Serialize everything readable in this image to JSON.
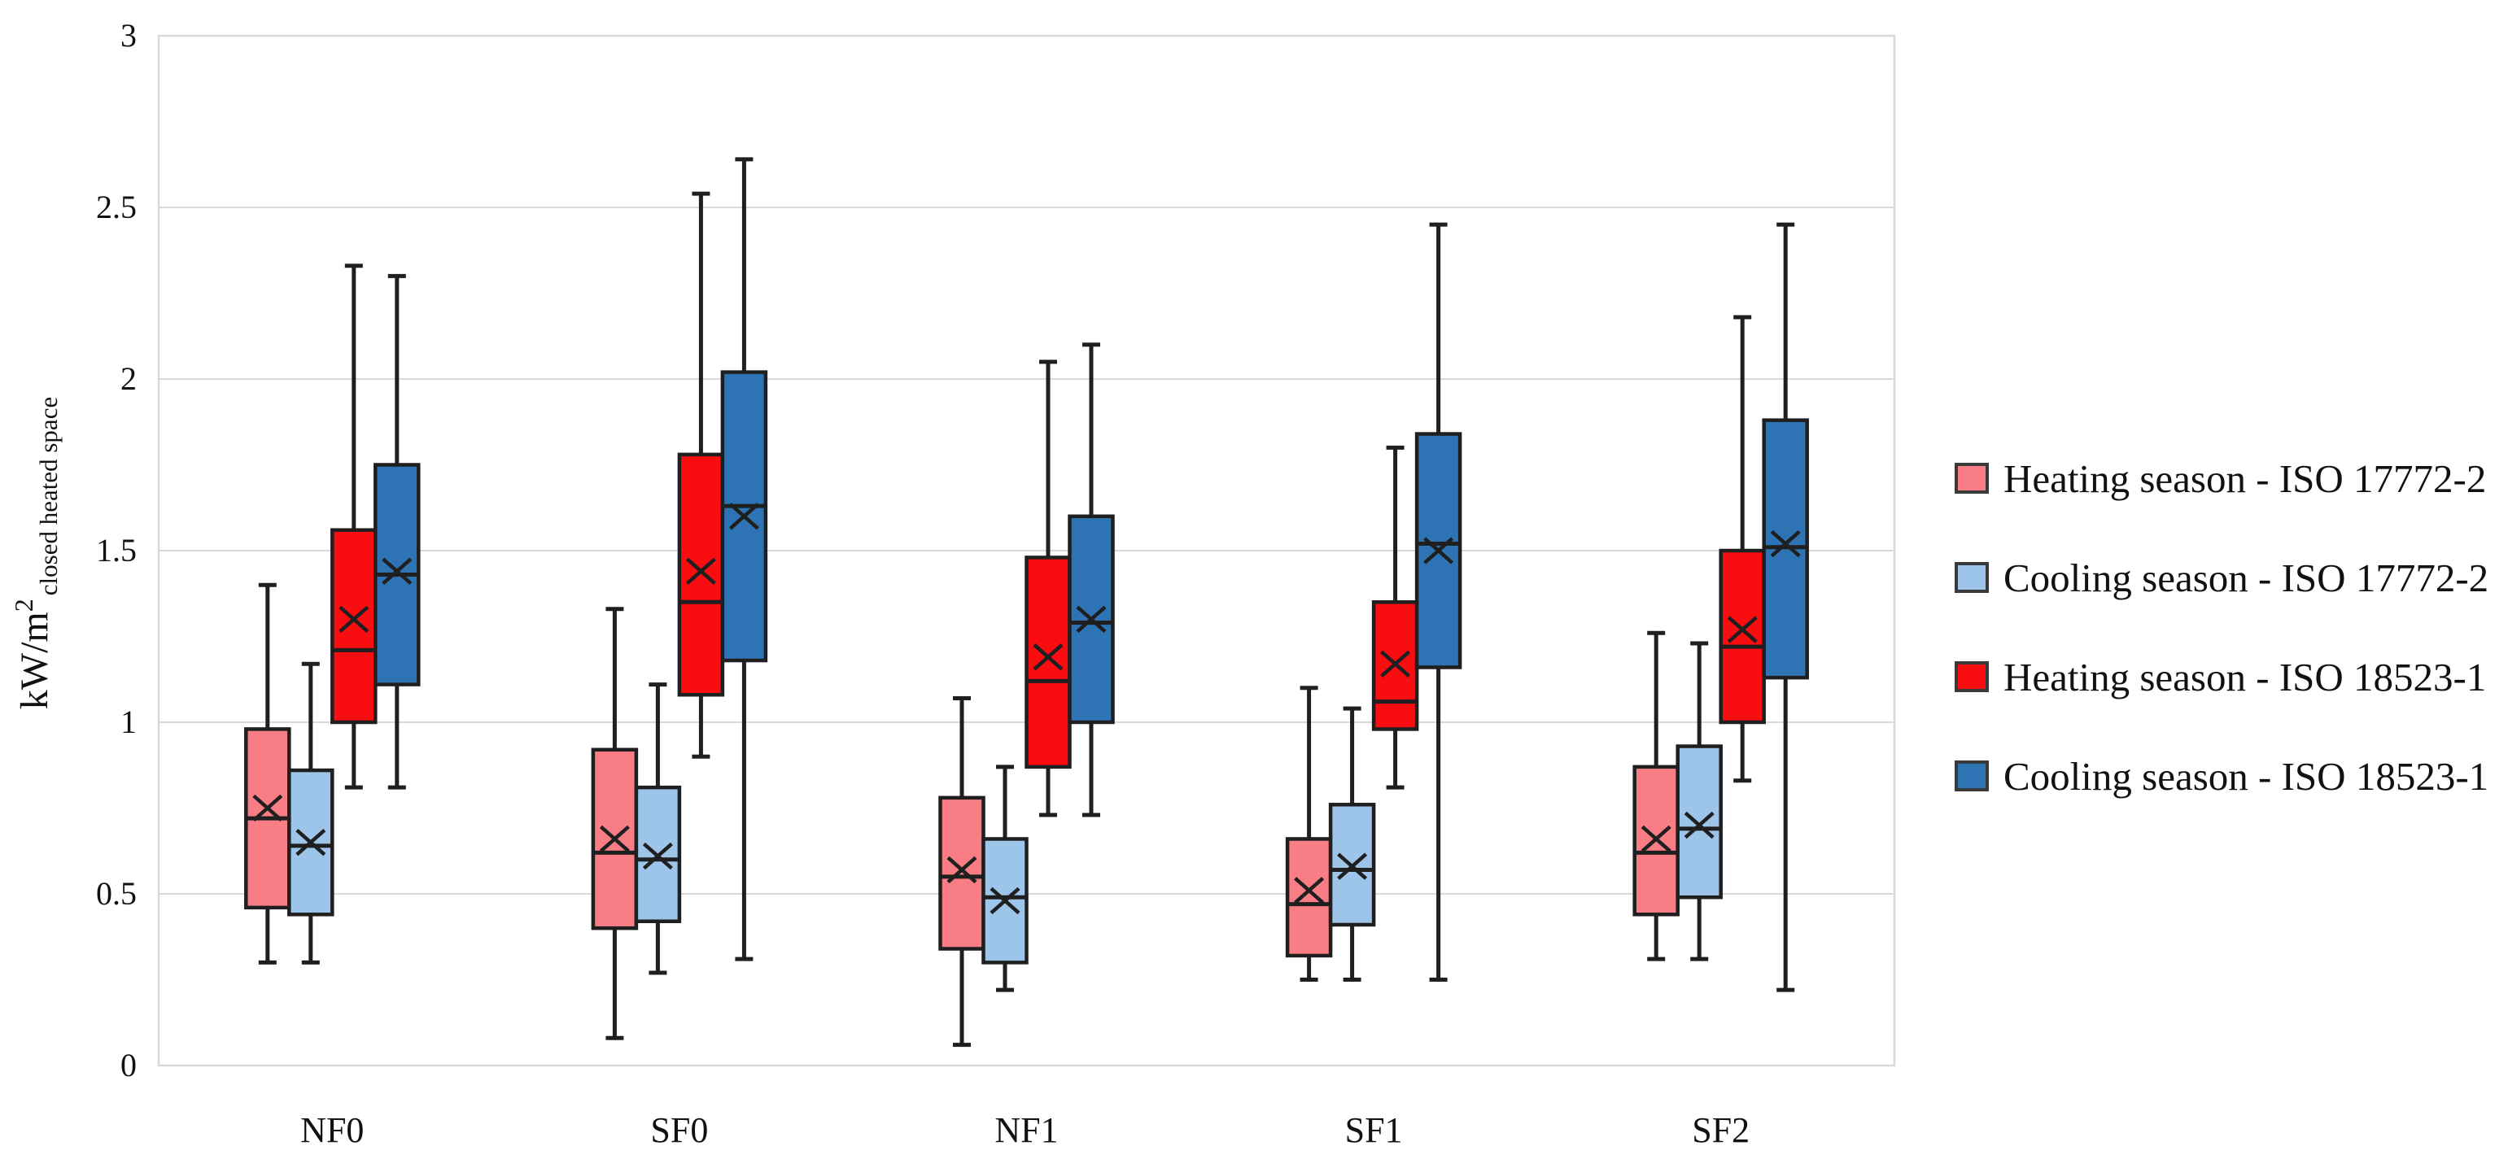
{
  "figure": {
    "background": "#FFFFFF",
    "axis_color": "#D9D9D9",
    "ink_color": "#1F1F1F",
    "legend_swatch_border": "#3A3A3A"
  },
  "chart_data": {
    "type": "boxplot",
    "title": "",
    "ylabel": {
      "main": "kW/m",
      "sup": "2",
      "sub": "closed heated space"
    },
    "categories": [
      "NF0",
      "SF0",
      "NF1",
      "SF1",
      "SF2"
    ],
    "y_axis": {
      "min": 0,
      "max": 3,
      "step": 0.5,
      "ticks": [
        "0",
        "0.5",
        "1",
        "1.5",
        "2",
        "2.5",
        "3"
      ]
    },
    "grid": true,
    "legend_position": "right",
    "series": [
      {
        "name": "Heating season - ISO 17772-2",
        "color": "#F87D85",
        "boxes": [
          {
            "min": 0.3,
            "q1": 0.46,
            "median": 0.72,
            "mean": 0.75,
            "q3": 0.98,
            "max": 1.4
          },
          {
            "min": 0.08,
            "q1": 0.4,
            "median": 0.62,
            "mean": 0.66,
            "q3": 0.92,
            "max": 1.33
          },
          {
            "min": 0.06,
            "q1": 0.34,
            "median": 0.55,
            "mean": 0.57,
            "q3": 0.78,
            "max": 1.07
          },
          {
            "min": 0.25,
            "q1": 0.32,
            "median": 0.47,
            "mean": 0.51,
            "q3": 0.66,
            "max": 1.1
          },
          {
            "min": 0.31,
            "q1": 0.44,
            "median": 0.62,
            "mean": 0.66,
            "q3": 0.87,
            "max": 1.26
          }
        ]
      },
      {
        "name": "Cooling season - ISO 17772-2",
        "color": "#9DC5EA",
        "boxes": [
          {
            "min": 0.3,
            "q1": 0.44,
            "median": 0.64,
            "mean": 0.65,
            "q3": 0.86,
            "max": 1.17
          },
          {
            "min": 0.27,
            "q1": 0.42,
            "median": 0.6,
            "mean": 0.61,
            "q3": 0.81,
            "max": 1.11
          },
          {
            "min": 0.22,
            "q1": 0.3,
            "median": 0.49,
            "mean": 0.48,
            "q3": 0.66,
            "max": 0.87
          },
          {
            "min": 0.25,
            "q1": 0.41,
            "median": 0.57,
            "mean": 0.58,
            "q3": 0.76,
            "max": 1.04
          },
          {
            "min": 0.31,
            "q1": 0.49,
            "median": 0.69,
            "mean": 0.7,
            "q3": 0.93,
            "max": 1.23
          }
        ]
      },
      {
        "name": "Heating season - ISO 18523-1",
        "color": "#FA0D10",
        "boxes": [
          {
            "min": 0.81,
            "q1": 1.0,
            "median": 1.21,
            "mean": 1.3,
            "q3": 1.56,
            "max": 2.33
          },
          {
            "min": 0.9,
            "q1": 1.08,
            "median": 1.35,
            "mean": 1.44,
            "q3": 1.78,
            "max": 2.54
          },
          {
            "min": 0.73,
            "q1": 0.87,
            "median": 1.12,
            "mean": 1.19,
            "q3": 1.48,
            "max": 2.05
          },
          {
            "min": 0.81,
            "q1": 0.98,
            "median": 1.06,
            "mean": 1.17,
            "q3": 1.35,
            "max": 1.8
          },
          {
            "min": 0.83,
            "q1": 1.0,
            "median": 1.22,
            "mean": 1.27,
            "q3": 1.5,
            "max": 2.18
          }
        ]
      },
      {
        "name": "Cooling season - ISO 18523-1",
        "color": "#2E74B5",
        "boxes": [
          {
            "min": 0.81,
            "q1": 1.11,
            "median": 1.43,
            "mean": 1.44,
            "q3": 1.75,
            "max": 2.3
          },
          {
            "min": 0.31,
            "q1": 1.18,
            "median": 1.63,
            "mean": 1.6,
            "q3": 2.02,
            "max": 2.64
          },
          {
            "min": 0.73,
            "q1": 1.0,
            "median": 1.29,
            "mean": 1.3,
            "q3": 1.6,
            "max": 2.1
          },
          {
            "min": 0.25,
            "q1": 1.16,
            "median": 1.52,
            "mean": 1.5,
            "q3": 1.84,
            "max": 2.45
          },
          {
            "min": 0.22,
            "q1": 1.13,
            "median": 1.51,
            "mean": 1.52,
            "q3": 1.88,
            "max": 2.45
          }
        ]
      }
    ]
  }
}
